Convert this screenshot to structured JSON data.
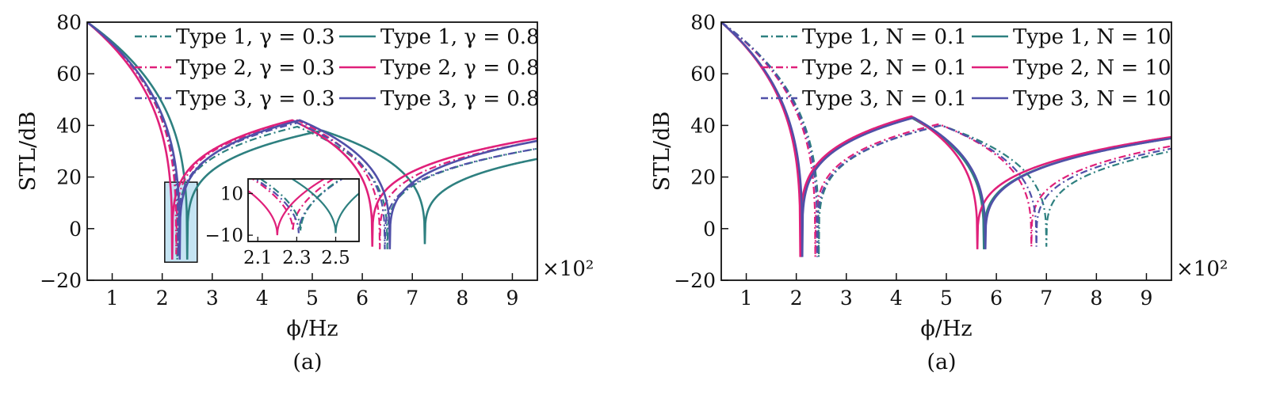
{
  "panels": [
    {
      "ylabel": "STL/dB",
      "xlabel": "ϕ/Hz",
      "caption": "(a)",
      "multiplier": "×10²",
      "xticks": [
        "1",
        "2",
        "3",
        "4",
        "5",
        "6",
        "7",
        "8",
        "9"
      ],
      "yticks": [
        "80",
        "60",
        "40",
        "20",
        "0",
        "−20"
      ],
      "legend": [
        "Type 1, γ = 0.3",
        "Type 1, γ = 0.8",
        "Type 2, γ = 0.3",
        "Type 2, γ = 0.8",
        "Type 3, γ = 0.3",
        "Type 3, γ = 0.8"
      ],
      "inset": {
        "xticks": [
          "2.1",
          "2.3",
          "2.5"
        ],
        "yticks": [
          "10",
          "−10"
        ]
      }
    },
    {
      "ylabel": "STL/dB",
      "xlabel": "ϕ/Hz",
      "caption": "(a)",
      "multiplier": "×10²",
      "xticks": [
        "1",
        "2",
        "3",
        "4",
        "5",
        "6",
        "7",
        "8",
        "9"
      ],
      "yticks": [
        "80",
        "60",
        "40",
        "20",
        "0",
        "−20"
      ],
      "legend": [
        "Type 1, N = 0.1",
        "Type 1, N = 10",
        "Type 2, N = 0.1",
        "Type 2, N = 10",
        "Type 3, N = 0.1",
        "Type 3, N = 10"
      ]
    }
  ],
  "colors": {
    "type1": "#2e8080",
    "type2": "#e0207a",
    "type3": "#5050a8",
    "zoom_box": "#c5e4f3"
  },
  "chart_data": [
    {
      "type": "line",
      "xlabel": "ϕ/Hz",
      "ylabel": "STL/dB",
      "x_multiplier": "×10²",
      "xlim": [
        0.5,
        9.5
      ],
      "ylim": [
        -20,
        80
      ],
      "legend_placement": "top-right",
      "series": [
        {
          "name": "Type 1, γ = 0.3",
          "style": "dashdot",
          "color": "type1",
          "dips": [
            {
              "x": 2.3,
              "y": -12
            },
            {
              "x": 6.5,
              "y": -8
            }
          ],
          "hump": {
            "x": 4.7,
            "y": 39.5
          },
          "end": [
            9.5,
            31
          ]
        },
        {
          "name": "Type 1, γ = 0.8",
          "style": "solid",
          "color": "type1",
          "dips": [
            {
              "x": 2.5,
              "y": -12
            },
            {
              "x": 7.25,
              "y": -6
            }
          ],
          "hump": {
            "x": 5.2,
            "y": 38
          },
          "end": [
            9.5,
            27
          ]
        },
        {
          "name": "Type 2, γ = 0.3",
          "style": "dashdot",
          "color": "type2",
          "dips": [
            {
              "x": 2.28,
              "y": -10
            },
            {
              "x": 6.35,
              "y": -8
            }
          ],
          "hump": {
            "x": 4.7,
            "y": 42
          },
          "end": [
            9.5,
            34
          ]
        },
        {
          "name": "Type 2, γ = 0.8",
          "style": "solid",
          "color": "type2",
          "dips": [
            {
              "x": 2.2,
              "y": -12
            },
            {
              "x": 6.2,
              "y": -7
            }
          ],
          "hump": {
            "x": 4.6,
            "y": 42
          },
          "end": [
            9.5,
            35
          ]
        },
        {
          "name": "Type 3, γ = 0.3",
          "style": "dashdot",
          "color": "type3",
          "dips": [
            {
              "x": 2.32,
              "y": -11
            },
            {
              "x": 6.45,
              "y": -8
            }
          ],
          "hump": {
            "x": 4.7,
            "y": 41
          },
          "end": [
            9.5,
            31
          ]
        },
        {
          "name": "Type 3, γ = 0.8",
          "style": "solid",
          "color": "type3",
          "dips": [
            {
              "x": 2.35,
              "y": -12
            },
            {
              "x": 6.55,
              "y": -8
            }
          ],
          "hump": {
            "x": 4.75,
            "y": 42
          },
          "end": [
            9.5,
            34
          ]
        }
      ],
      "inset": {
        "xlim": [
          2.05,
          2.62
        ],
        "ylim": [
          -13,
          17
        ],
        "dips": [
          {
            "x": 2.2,
            "y": -10,
            "color": "type2",
            "style": "solid"
          },
          {
            "x": 2.28,
            "y": -8,
            "color": "type2",
            "style": "dashdot"
          },
          {
            "x": 2.31,
            "y": -9,
            "color": "type3",
            "style": "dashdot"
          },
          {
            "x": 2.32,
            "y": -8,
            "color": "type1",
            "style": "dashdot"
          },
          {
            "x": 2.5,
            "y": -9,
            "color": "type1",
            "style": "solid"
          }
        ]
      }
    },
    {
      "type": "line",
      "xlabel": "ϕ/Hz",
      "ylabel": "STL/dB",
      "x_multiplier": "×10²",
      "xlim": [
        0.5,
        9.5
      ],
      "ylim": [
        -20,
        80
      ],
      "legend_placement": "top-right",
      "series": [
        {
          "name": "Type 1, N = 0.1",
          "style": "dashdot",
          "color": "type1",
          "dips": [
            {
              "x": 2.45,
              "y": -11
            },
            {
              "x": 7.0,
              "y": -7
            }
          ],
          "hump": {
            "x": 4.9,
            "y": 40
          },
          "end": [
            9.5,
            30
          ]
        },
        {
          "name": "Type 1, N = 10",
          "style": "solid",
          "color": "type1",
          "dips": [
            {
              "x": 2.1,
              "y": -11
            },
            {
              "x": 5.75,
              "y": -8
            }
          ],
          "hump": {
            "x": 4.3,
            "y": 43
          },
          "end": [
            9.5,
            35
          ]
        },
        {
          "name": "Type 2, N = 0.1",
          "style": "dashdot",
          "color": "type2",
          "dips": [
            {
              "x": 2.38,
              "y": -11
            },
            {
              "x": 6.7,
              "y": -7
            }
          ],
          "hump": {
            "x": 4.85,
            "y": 40.5
          },
          "end": [
            9.5,
            32
          ]
        },
        {
          "name": "Type 2, N = 10",
          "style": "solid",
          "color": "type2",
          "dips": [
            {
              "x": 2.08,
              "y": -11
            },
            {
              "x": 5.62,
              "y": -8
            }
          ],
          "hump": {
            "x": 4.3,
            "y": 43.5
          },
          "end": [
            9.5,
            35.5
          ]
        },
        {
          "name": "Type 3, N = 0.1",
          "style": "dashdot",
          "color": "type3",
          "dips": [
            {
              "x": 2.42,
              "y": -11
            },
            {
              "x": 6.8,
              "y": -7
            }
          ],
          "hump": {
            "x": 4.9,
            "y": 40
          },
          "end": [
            9.5,
            31
          ]
        },
        {
          "name": "Type 3, N = 10",
          "style": "solid",
          "color": "type3",
          "dips": [
            {
              "x": 2.12,
              "y": -11
            },
            {
              "x": 5.78,
              "y": -8
            }
          ],
          "hump": {
            "x": 4.35,
            "y": 43
          },
          "end": [
            9.5,
            35
          ]
        }
      ]
    }
  ]
}
